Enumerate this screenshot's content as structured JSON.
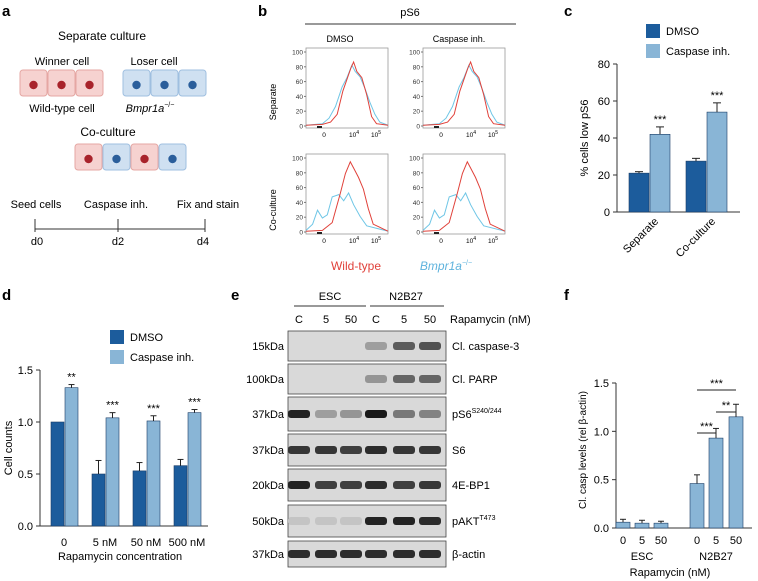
{
  "panel_labels": {
    "a": "a",
    "b": "b",
    "c": "c",
    "d": "d",
    "e": "e",
    "f": "f"
  },
  "colors": {
    "dark_blue": "#1c5c9c",
    "light_blue": "#89b5d6",
    "red": "#e0413a",
    "cyan": "#6fc6e6",
    "cell_red_fill": "#f6d2d0",
    "cell_blue_fill": "#cfe0f1"
  },
  "panel_a": {
    "separate_title": "Separate culture",
    "winner_label": "Winner cell",
    "loser_label": "Loser cell",
    "wildtype_label": "Wild-type cell",
    "bmpr_label": "Bmpr1a",
    "bmpr_sup": "−/−",
    "coculture_title": "Co-culture",
    "timeline": {
      "steps": [
        "Seed cells",
        "Caspase inh.",
        "Fix and stain"
      ],
      "days": [
        "d0",
        "d2",
        "d4"
      ]
    }
  },
  "panel_b": {
    "title": "pS6",
    "col_labels": [
      "DMSO",
      "Caspase inh."
    ],
    "row_labels": [
      "Separate",
      "Co-culture"
    ],
    "y_ticks": [
      "100",
      "80",
      "60",
      "40",
      "20",
      "0"
    ],
    "x_ticks": [
      "0",
      "10",
      "4",
      "10",
      "5"
    ],
    "legend_wt": "Wild-type",
    "legend_bmpr": "Bmpr1a",
    "legend_sup": "−/−"
  },
  "chart_data": [
    {
      "panel": "c",
      "type": "bar",
      "categories": [
        "Separate",
        "Co-culture"
      ],
      "series": [
        {
          "name": "DMSO",
          "values": [
            21,
            27.5
          ],
          "errors": [
            0.8,
            1.5
          ]
        },
        {
          "name": "Caspase inh.",
          "values": [
            42,
            54
          ],
          "errors": [
            4,
            5
          ]
        }
      ],
      "significance": [
        "***",
        "***"
      ],
      "ylabel": "% cells low pS6",
      "ylim": [
        0,
        80
      ],
      "yticks": [
        0,
        20,
        40,
        60,
        80
      ],
      "legend": [
        "DMSO",
        "Caspase inh."
      ]
    },
    {
      "panel": "d",
      "type": "bar",
      "categories": [
        "0",
        "5 nM",
        "50 nM",
        "500 nM"
      ],
      "series": [
        {
          "name": "DMSO",
          "values": [
            1.0,
            0.5,
            0.53,
            0.58
          ],
          "errors": [
            0,
            0.13,
            0.08,
            0.06
          ]
        },
        {
          "name": "Caspase inh.",
          "values": [
            1.33,
            1.04,
            1.01,
            1.09
          ],
          "errors": [
            0.03,
            0.05,
            0.05,
            0.03
          ]
        }
      ],
      "significance": [
        "**",
        "***",
        "***",
        "***"
      ],
      "xlabel": "Rapamycin concentration",
      "ylabel": "Cell counts",
      "ylim": [
        0,
        1.5
      ],
      "yticks": [
        "0.0",
        "0.5",
        "1.0",
        "1.5"
      ],
      "legend": [
        "DMSO",
        "Caspase inh."
      ]
    },
    {
      "panel": "f",
      "type": "bar",
      "categories": [
        "0",
        "5",
        "50",
        "0",
        "5",
        "50"
      ],
      "groups": [
        "ESC",
        "N2B27"
      ],
      "values": [
        0.06,
        0.05,
        0.05,
        0.46,
        0.93,
        1.15
      ],
      "errors": [
        0.03,
        0.03,
        0.02,
        0.09,
        0.1,
        0.13
      ],
      "significance": [
        {
          "pair": [
            3,
            4
          ],
          "label": "***"
        },
        {
          "pair": [
            4,
            5
          ],
          "label": "**"
        },
        {
          "pair": [
            3,
            5
          ],
          "label": "***"
        }
      ],
      "xlabel": "Rapamycin (nM)",
      "ylabel": "Cl. casp levels (rel β-actin)",
      "ylim": [
        0,
        1.5
      ],
      "yticks": [
        "0.0",
        "0.5",
        "1.0",
        "1.5"
      ]
    }
  ],
  "panel_e": {
    "groups": [
      "ESC",
      "N2B27"
    ],
    "lanes": [
      "C",
      "5",
      "50",
      "C",
      "5",
      "50"
    ],
    "treatment": "Rapamycin (nM)",
    "rows": [
      {
        "kda": "15kDa",
        "label": "Cl. caspase-3",
        "sup": ""
      },
      {
        "kda": "100kDa",
        "label": "Cl. PARP",
        "sup": ""
      },
      {
        "kda": "37kDa",
        "label": "pS6",
        "sup": "S240/244"
      },
      {
        "kda": "37kDa",
        "label": "S6",
        "sup": ""
      },
      {
        "kda": "20kDa",
        "label": "4E-BP1",
        "sup": ""
      },
      {
        "kda": "50kDa",
        "label": "pAKT",
        "sup": "T473"
      },
      {
        "kda": "37kDa",
        "label": "β-actin",
        "sup": ""
      }
    ]
  }
}
